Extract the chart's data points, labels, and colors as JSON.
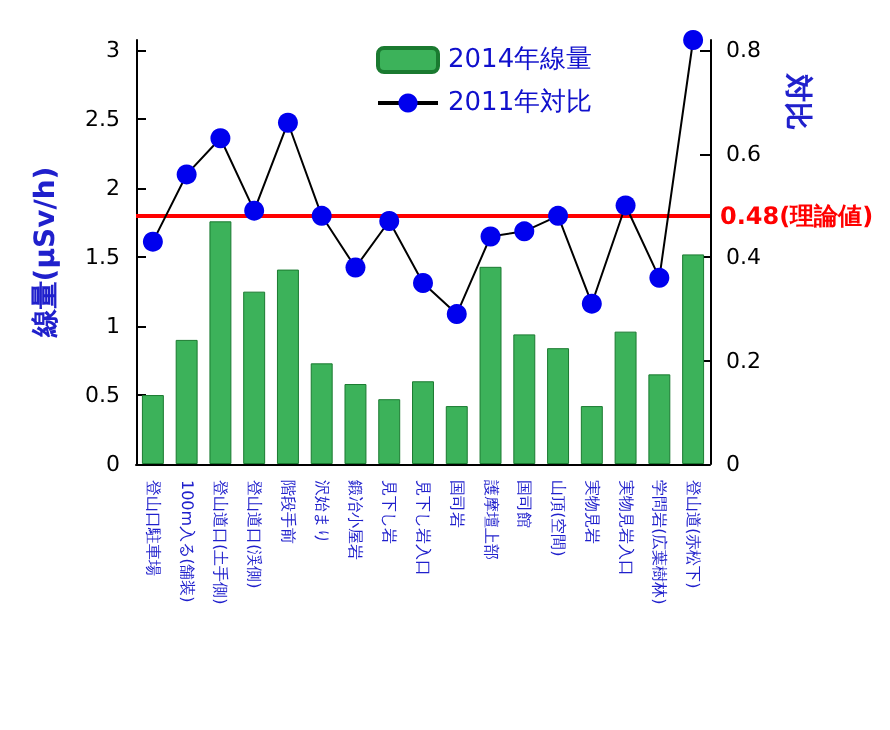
{
  "chart_data": {
    "type": "bar",
    "categories": [
      "登山口駐車場",
      "100m入る(舗装)",
      "登山道口(土手側)",
      "登山道口(渓側)",
      "階段手前",
      "沢始まり",
      "鍛冶小屋岩",
      "見下し岩",
      "見下し岩入口",
      "国司岩",
      "護摩壇上部",
      "国司館",
      "山頂(空間)",
      "実物見岩",
      "実物見岩入口",
      "学問岩(広葉樹林)",
      "登山道(赤松下)"
    ],
    "series": [
      {
        "name": "2014年線量",
        "color": "#3cb25a",
        "values": [
          0.5,
          0.9,
          1.76,
          1.25,
          1.41,
          0.73,
          0.58,
          0.47,
          0.6,
          0.42,
          1.43,
          0.94,
          0.84,
          0.42,
          0.96,
          0.65,
          1.52
        ]
      },
      {
        "name": "2011年対比",
        "type": "line",
        "axis": "y2",
        "color": "#0000ee",
        "marker": "circle",
        "values": [
          0.43,
          0.56,
          0.63,
          0.49,
          0.66,
          0.48,
          0.38,
          0.47,
          0.35,
          0.29,
          0.44,
          0.45,
          0.48,
          0.31,
          0.5,
          0.36,
          0.82
        ]
      }
    ],
    "ylabel": "線量(μSv/h)",
    "y2label": "対比",
    "ylim": [
      0,
      3.075
    ],
    "yticks": [
      0,
      0.5,
      1,
      1.5,
      2,
      2.5,
      3
    ],
    "y2lim": [
      0,
      0.82
    ],
    "y2ticks": [
      0,
      0.2,
      0.4,
      0.6,
      0.8
    ],
    "ref_lines": [
      {
        "axis": "y2",
        "value": 0.48,
        "label": "0.48(理論値)",
        "color": "#ff0000"
      }
    ],
    "legend": "top",
    "grid": false
  }
}
